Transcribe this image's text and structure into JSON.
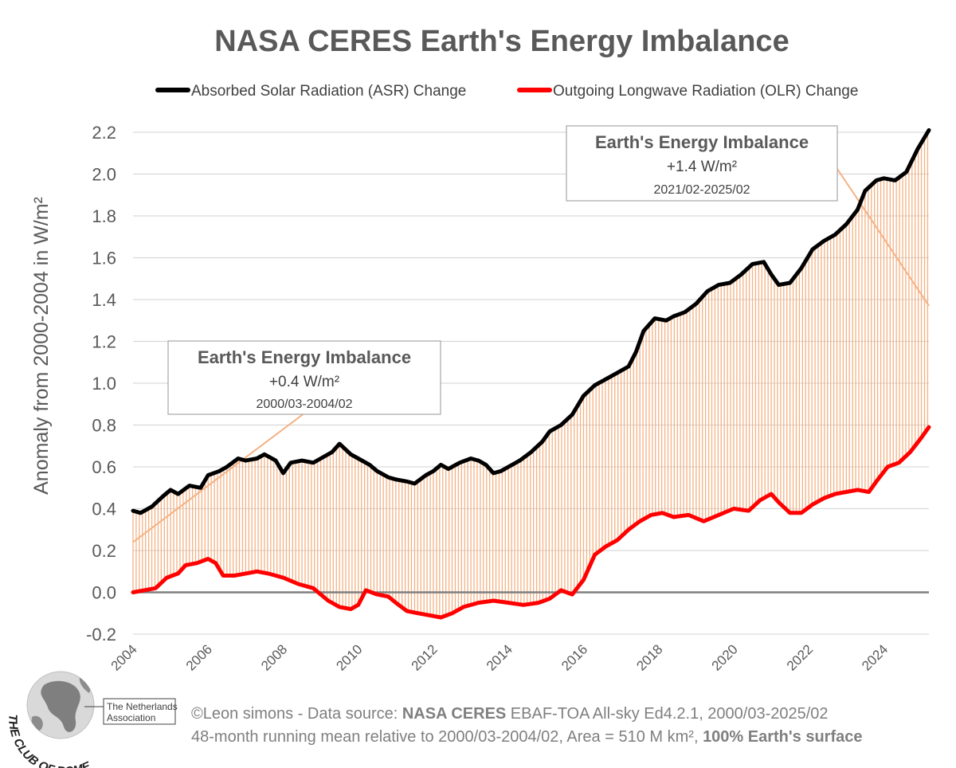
{
  "chart_data": {
    "type": "area",
    "title": "NASA CERES Earth's Energy Imbalance",
    "ylabel": "Anomaly from 2000-2004 in W/m²",
    "ylim": [
      -0.2,
      2.2
    ],
    "yticks": [
      "-0.2",
      "0.0",
      "0.2",
      "0.4",
      "0.6",
      "0.8",
      "1.0",
      "1.2",
      "1.4",
      "1.6",
      "1.8",
      "2.0",
      "2.2"
    ],
    "xlim": [
      2004.0,
      2025.2
    ],
    "xticks": [
      "2004",
      "2006",
      "2008",
      "2010",
      "2012",
      "2014",
      "2016",
      "2018",
      "2020",
      "2022",
      "2024"
    ],
    "grid": "horizontal",
    "legend_position": "top",
    "series": [
      {
        "name": "Absorbed Solar Radiation (ASR) Change",
        "color": "#000000",
        "points": [
          [
            2004.0,
            0.39
          ],
          [
            2004.2,
            0.38
          ],
          [
            2004.5,
            0.41
          ],
          [
            2004.8,
            0.46
          ],
          [
            2005.0,
            0.49
          ],
          [
            2005.2,
            0.47
          ],
          [
            2005.5,
            0.51
          ],
          [
            2005.8,
            0.5
          ],
          [
            2006.0,
            0.56
          ],
          [
            2006.3,
            0.58
          ],
          [
            2006.5,
            0.6
          ],
          [
            2006.8,
            0.64
          ],
          [
            2007.0,
            0.63
          ],
          [
            2007.3,
            0.64
          ],
          [
            2007.5,
            0.66
          ],
          [
            2007.8,
            0.63
          ],
          [
            2008.0,
            0.57
          ],
          [
            2008.2,
            0.62
          ],
          [
            2008.5,
            0.63
          ],
          [
            2008.8,
            0.62
          ],
          [
            2009.0,
            0.64
          ],
          [
            2009.3,
            0.67
          ],
          [
            2009.5,
            0.71
          ],
          [
            2009.8,
            0.66
          ],
          [
            2010.0,
            0.64
          ],
          [
            2010.3,
            0.61
          ],
          [
            2010.5,
            0.58
          ],
          [
            2010.8,
            0.55
          ],
          [
            2011.0,
            0.54
          ],
          [
            2011.3,
            0.53
          ],
          [
            2011.5,
            0.52
          ],
          [
            2011.8,
            0.56
          ],
          [
            2012.0,
            0.58
          ],
          [
            2012.2,
            0.61
          ],
          [
            2012.4,
            0.59
          ],
          [
            2012.7,
            0.62
          ],
          [
            2013.0,
            0.64
          ],
          [
            2013.2,
            0.63
          ],
          [
            2013.4,
            0.61
          ],
          [
            2013.6,
            0.57
          ],
          [
            2013.8,
            0.58
          ],
          [
            2014.0,
            0.6
          ],
          [
            2014.3,
            0.63
          ],
          [
            2014.6,
            0.67
          ],
          [
            2014.9,
            0.72
          ],
          [
            2015.1,
            0.77
          ],
          [
            2015.4,
            0.8
          ],
          [
            2015.7,
            0.85
          ],
          [
            2016.0,
            0.94
          ],
          [
            2016.3,
            0.99
          ],
          [
            2016.6,
            1.02
          ],
          [
            2016.9,
            1.05
          ],
          [
            2017.2,
            1.08
          ],
          [
            2017.4,
            1.15
          ],
          [
            2017.6,
            1.25
          ],
          [
            2017.9,
            1.31
          ],
          [
            2018.2,
            1.3
          ],
          [
            2018.4,
            1.32
          ],
          [
            2018.7,
            1.34
          ],
          [
            2019.0,
            1.38
          ],
          [
            2019.3,
            1.44
          ],
          [
            2019.6,
            1.47
          ],
          [
            2019.9,
            1.48
          ],
          [
            2020.2,
            1.52
          ],
          [
            2020.5,
            1.57
          ],
          [
            2020.8,
            1.58
          ],
          [
            2021.0,
            1.52
          ],
          [
            2021.2,
            1.47
          ],
          [
            2021.5,
            1.48
          ],
          [
            2021.8,
            1.55
          ],
          [
            2022.1,
            1.64
          ],
          [
            2022.4,
            1.68
          ],
          [
            2022.7,
            1.71
          ],
          [
            2023.0,
            1.76
          ],
          [
            2023.3,
            1.83
          ],
          [
            2023.5,
            1.92
          ],
          [
            2023.8,
            1.97
          ],
          [
            2024.0,
            1.98
          ],
          [
            2024.3,
            1.97
          ],
          [
            2024.6,
            2.01
          ],
          [
            2024.9,
            2.12
          ],
          [
            2025.2,
            2.21
          ]
        ]
      },
      {
        "name": "Outgoing Longwave Radiation (OLR) Change",
        "color": "#ff0000",
        "points": [
          [
            2004.0,
            0.0
          ],
          [
            2004.3,
            0.01
          ],
          [
            2004.6,
            0.02
          ],
          [
            2004.9,
            0.07
          ],
          [
            2005.2,
            0.09
          ],
          [
            2005.4,
            0.13
          ],
          [
            2005.7,
            0.14
          ],
          [
            2006.0,
            0.16
          ],
          [
            2006.2,
            0.14
          ],
          [
            2006.4,
            0.08
          ],
          [
            2006.7,
            0.08
          ],
          [
            2007.0,
            0.09
          ],
          [
            2007.3,
            0.1
          ],
          [
            2007.6,
            0.09
          ],
          [
            2008.0,
            0.07
          ],
          [
            2008.4,
            0.04
          ],
          [
            2008.8,
            0.02
          ],
          [
            2009.2,
            -0.04
          ],
          [
            2009.5,
            -0.07
          ],
          [
            2009.8,
            -0.08
          ],
          [
            2010.0,
            -0.06
          ],
          [
            2010.2,
            0.01
          ],
          [
            2010.5,
            -0.01
          ],
          [
            2010.8,
            -0.02
          ],
          [
            2011.0,
            -0.05
          ],
          [
            2011.3,
            -0.09
          ],
          [
            2011.6,
            -0.1
          ],
          [
            2011.9,
            -0.11
          ],
          [
            2012.2,
            -0.12
          ],
          [
            2012.5,
            -0.1
          ],
          [
            2012.8,
            -0.07
          ],
          [
            2013.2,
            -0.05
          ],
          [
            2013.6,
            -0.04
          ],
          [
            2014.0,
            -0.05
          ],
          [
            2014.4,
            -0.06
          ],
          [
            2014.8,
            -0.05
          ],
          [
            2015.1,
            -0.03
          ],
          [
            2015.4,
            0.01
          ],
          [
            2015.7,
            -0.01
          ],
          [
            2016.0,
            0.06
          ],
          [
            2016.3,
            0.18
          ],
          [
            2016.6,
            0.22
          ],
          [
            2016.9,
            0.25
          ],
          [
            2017.2,
            0.3
          ],
          [
            2017.5,
            0.34
          ],
          [
            2017.8,
            0.37
          ],
          [
            2018.1,
            0.38
          ],
          [
            2018.4,
            0.36
          ],
          [
            2018.8,
            0.37
          ],
          [
            2019.2,
            0.34
          ],
          [
            2019.6,
            0.37
          ],
          [
            2020.0,
            0.4
          ],
          [
            2020.4,
            0.39
          ],
          [
            2020.7,
            0.44
          ],
          [
            2021.0,
            0.47
          ],
          [
            2021.2,
            0.43
          ],
          [
            2021.5,
            0.38
          ],
          [
            2021.8,
            0.38
          ],
          [
            2022.1,
            0.42
          ],
          [
            2022.4,
            0.45
          ],
          [
            2022.7,
            0.47
          ],
          [
            2023.0,
            0.48
          ],
          [
            2023.3,
            0.49
          ],
          [
            2023.6,
            0.48
          ],
          [
            2023.8,
            0.53
          ],
          [
            2024.1,
            0.6
          ],
          [
            2024.4,
            0.62
          ],
          [
            2024.7,
            0.67
          ],
          [
            2025.0,
            0.74
          ],
          [
            2025.2,
            0.79
          ]
        ]
      }
    ],
    "annotations": [
      {
        "title": "Earth's Energy Imbalance",
        "value": "+0.4 W/m²",
        "period": "2000/03-2004/02"
      },
      {
        "title": "Earth's Energy Imbalance",
        "value": "+1.4 W/m²",
        "period": "2021/02-2025/02"
      }
    ],
    "fill_color": "#f4b183",
    "connector_color": "#f4b183"
  },
  "footer": {
    "line1_prefix": "©Leon simons - Data source: ",
    "line1_bold": "NASA CERES",
    "line1_suffix": " EBAF-TOA All-sky Ed4.2.1, 2000/03-2025/02",
    "line2_prefix": "48-month running mean relative to 2000/03-2004/02, Area = 510 M km², ",
    "line2_bold": "100% Earth's surface"
  },
  "logo": {
    "org_line1": "The Netherlands",
    "org_line2": "Association",
    "arc_text": "THE CLUB OF ROME"
  }
}
